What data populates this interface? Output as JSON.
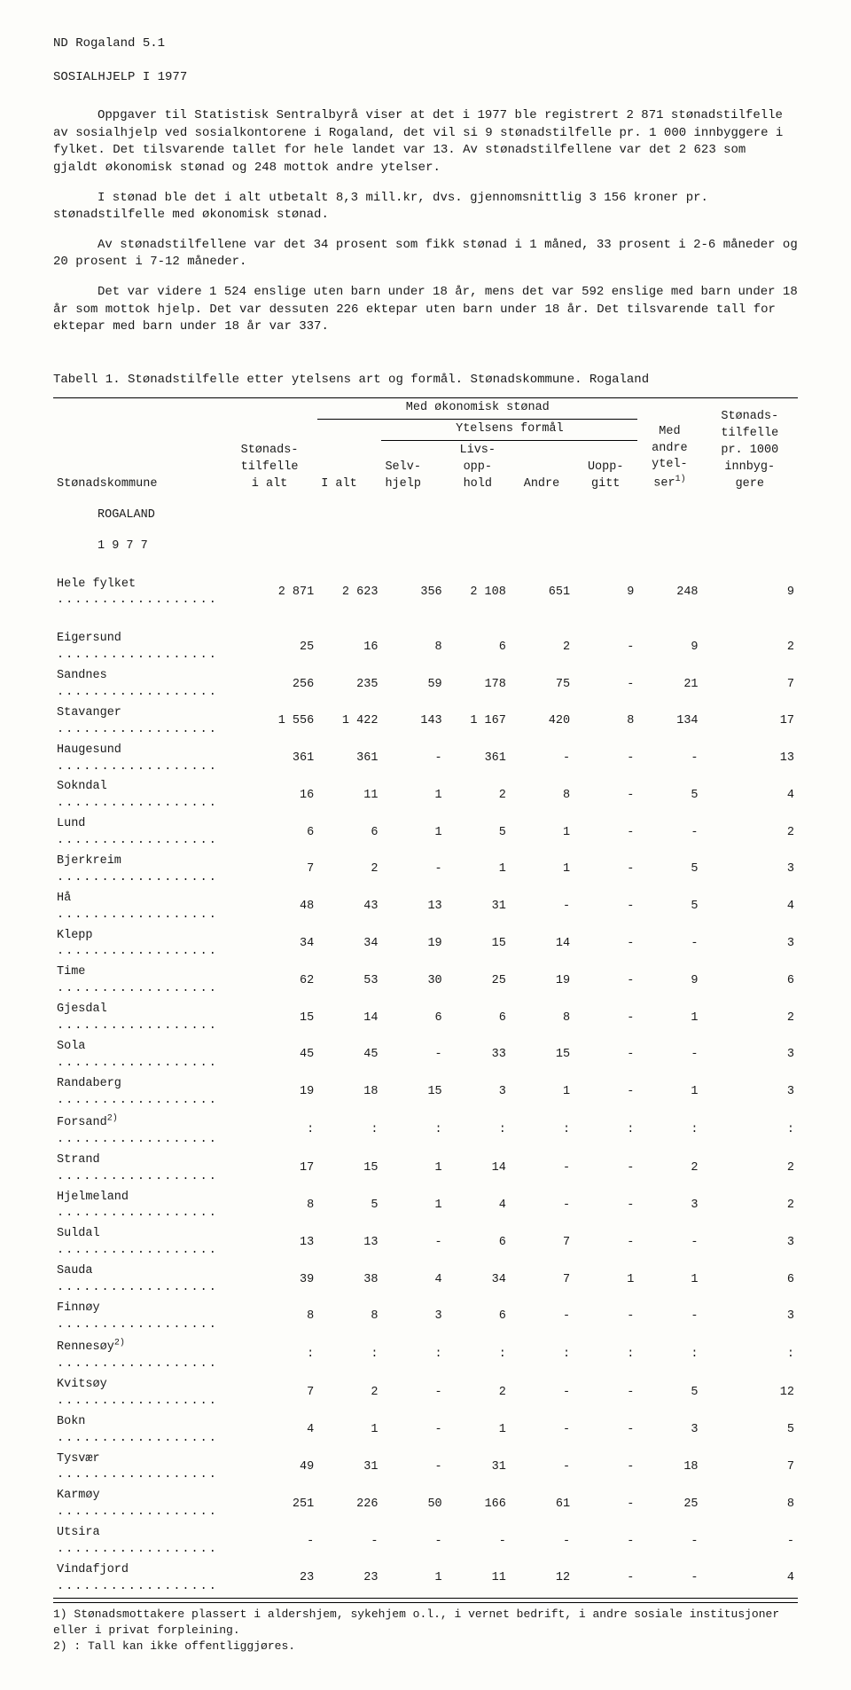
{
  "doc_id": "ND  Rogaland  5.1",
  "title": "SOSIALHJELP I 1977",
  "paragraphs": [
    "Oppgaver til Statistisk Sentralbyrå viser at det i 1977 ble registrert 2 871 stønadstilfelle av sosialhjelp ved sosialkontorene i Rogaland, det vil si 9 stønadstilfelle pr. 1 000 innbyggere i fylket.  Det tilsvarende tallet for hele landet var 13.  Av stønadstilfellene var det 2 623 som gjaldt økonomisk stønad og 248 mottok andre ytelser.",
    "I stønad ble det i alt utbetalt 8,3 mill.kr, dvs. gjennomsnittlig 3 156 kroner pr. stønadstilfelle med økonomisk stønad.",
    "Av stønadstilfellene var det 34 prosent som fikk stønad i 1 måned, 33 prosent i 2-6 måneder og 20 prosent i 7-12 måneder.",
    "Det var videre 1 524 enslige uten barn under 18 år, mens det var 592 enslige med barn under 18 år som mottok hjelp.  Det var dessuten 226 ektepar uten barn under 18 år.  Det tilsvarende tall for ektepar med barn under 18 år var 337."
  ],
  "table_caption": "Tabell 1.  Stønadstilfelle etter ytelsens art og formål.  Stønadskommune.   Rogaland",
  "headers": {
    "c1": "Stønadskommune",
    "c2a": "Stønads-",
    "c2b": "tilfelle",
    "c2c": "i alt",
    "group_ok": "Med økonomisk stønad",
    "c3": "I alt",
    "group_yt": "Ytelsens formål",
    "c4a": "Selv-",
    "c4b": "hjelp",
    "c5a": "Livs-",
    "c5b": "opp-",
    "c5c": "hold",
    "c6": "Andre",
    "c7a": "Uopp-",
    "c7b": "gitt",
    "c8a": "Med",
    "c8b": "andre",
    "c8c": "ytel-",
    "c8d": "ser",
    "c8sup": "1)",
    "c9a": "Stønads-",
    "c9b": "tilfelle",
    "c9c": "pr. 1000",
    "c9d": "innbyg-",
    "c9e": "gere"
  },
  "section1": "ROGALAND",
  "section2": "1 9 7 7",
  "rows": [
    {
      "n": "Hele fylket",
      "sup": "",
      "d": [
        "2 871",
        "2 623",
        "356",
        "2 108",
        "651",
        "9",
        "248",
        "9"
      ]
    },
    {
      "n": "Eigersund",
      "sup": "",
      "d": [
        "25",
        "16",
        "8",
        "6",
        "2",
        "-",
        "9",
        "2"
      ]
    },
    {
      "n": "Sandnes",
      "sup": "",
      "d": [
        "256",
        "235",
        "59",
        "178",
        "75",
        "-",
        "21",
        "7"
      ]
    },
    {
      "n": "Stavanger",
      "sup": "",
      "d": [
        "1 556",
        "1 422",
        "143",
        "1 167",
        "420",
        "8",
        "134",
        "17"
      ]
    },
    {
      "n": "Haugesund",
      "sup": "",
      "d": [
        "361",
        "361",
        "-",
        "361",
        "-",
        "-",
        "-",
        "13"
      ]
    },
    {
      "n": "Sokndal",
      "sup": "",
      "d": [
        "16",
        "11",
        "1",
        "2",
        "8",
        "-",
        "5",
        "4"
      ]
    },
    {
      "n": "Lund",
      "sup": "",
      "d": [
        "6",
        "6",
        "1",
        "5",
        "1",
        "-",
        "-",
        "2"
      ]
    },
    {
      "n": "Bjerkreim",
      "sup": "",
      "d": [
        "7",
        "2",
        "-",
        "1",
        "1",
        "-",
        "5",
        "3"
      ]
    },
    {
      "n": "Hå",
      "sup": "",
      "d": [
        "48",
        "43",
        "13",
        "31",
        "-",
        "-",
        "5",
        "4"
      ]
    },
    {
      "n": "Klepp",
      "sup": "",
      "d": [
        "34",
        "34",
        "19",
        "15",
        "14",
        "-",
        "-",
        "3"
      ]
    },
    {
      "n": "Time",
      "sup": "",
      "d": [
        "62",
        "53",
        "30",
        "25",
        "19",
        "-",
        "9",
        "6"
      ]
    },
    {
      "n": "Gjesdal",
      "sup": "",
      "d": [
        "15",
        "14",
        "6",
        "6",
        "8",
        "-",
        "1",
        "2"
      ]
    },
    {
      "n": "Sola",
      "sup": "",
      "d": [
        "45",
        "45",
        "-",
        "33",
        "15",
        "-",
        "-",
        "3"
      ]
    },
    {
      "n": "Randaberg",
      "sup": "",
      "d": [
        "19",
        "18",
        "15",
        "3",
        "1",
        "-",
        "1",
        "3"
      ]
    },
    {
      "n": "Forsand",
      "sup": "2)",
      "d": [
        ":",
        ":",
        ":",
        ":",
        ":",
        ":",
        ":",
        ":"
      ]
    },
    {
      "n": "Strand",
      "sup": "",
      "d": [
        "17",
        "15",
        "1",
        "14",
        "-",
        "-",
        "2",
        "2"
      ]
    },
    {
      "n": "Hjelmeland",
      "sup": "",
      "d": [
        "8",
        "5",
        "1",
        "4",
        "-",
        "-",
        "3",
        "2"
      ]
    },
    {
      "n": "Suldal",
      "sup": "",
      "d": [
        "13",
        "13",
        "-",
        "6",
        "7",
        "-",
        "-",
        "3"
      ]
    },
    {
      "n": "Sauda",
      "sup": "",
      "d": [
        "39",
        "38",
        "4",
        "34",
        "7",
        "1",
        "1",
        "6"
      ]
    },
    {
      "n": "Finnøy",
      "sup": "",
      "d": [
        "8",
        "8",
        "3",
        "6",
        "-",
        "-",
        "-",
        "3"
      ]
    },
    {
      "n": "Rennesøy",
      "sup": "2)",
      "d": [
        ":",
        ":",
        ":",
        ":",
        ":",
        ":",
        ":",
        ":"
      ]
    },
    {
      "n": "Kvitsøy",
      "sup": "",
      "d": [
        "7",
        "2",
        "-",
        "2",
        "-",
        "-",
        "5",
        "12"
      ]
    },
    {
      "n": "Bokn",
      "sup": "",
      "d": [
        "4",
        "1",
        "-",
        "1",
        "-",
        "-",
        "3",
        "5"
      ]
    },
    {
      "n": "Tysvær",
      "sup": "",
      "d": [
        "49",
        "31",
        "-",
        "31",
        "-",
        "-",
        "18",
        "7"
      ]
    },
    {
      "n": "Karmøy",
      "sup": "",
      "d": [
        "251",
        "226",
        "50",
        "166",
        "61",
        "-",
        "25",
        "8"
      ]
    },
    {
      "n": "Utsira",
      "sup": "",
      "d": [
        "-",
        "-",
        "-",
        "-",
        "-",
        "-",
        "-",
        "-"
      ]
    },
    {
      "n": "Vindafjord",
      "sup": "",
      "d": [
        "23",
        "23",
        "1",
        "11",
        "12",
        "-",
        "-",
        "4"
      ]
    }
  ],
  "footnote1": "1) Stønadsmottakere plassert i aldershjem, sykehjem o.l., i vernet bedrift, i andre sosiale institusjoner eller i privat forpleining.",
  "footnote2": "2) : Tall kan ikke offentliggjøres."
}
